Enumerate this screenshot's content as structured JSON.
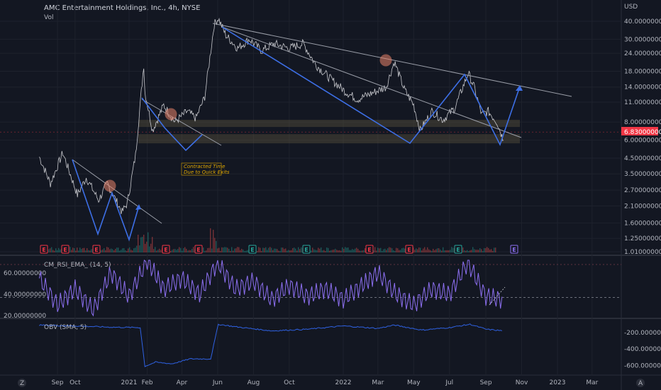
{
  "header": {
    "title": "AMC Entertainment Holdings, Inc., 4h, NYSE",
    "vol_label": "Vol"
  },
  "currency": "USD",
  "current_price": "6.83000000",
  "annotation": {
    "line1": "Contracted Time",
    "line2": "Due to Quick Exits"
  },
  "indicators": {
    "rsi_label": "CM_RSI_EMA_ (14, 5)",
    "obv_label": "OBV (SMA, 5)"
  },
  "bottom_bar": {
    "timezone_icon": "Z",
    "auto_label": "A"
  },
  "event_markers": {
    "earnings": "E",
    "future": "E",
    "dividend": "E"
  },
  "colors": {
    "background": "#131722",
    "price_line": "#d1d4dc",
    "pattern_blue": "#3d6fe6",
    "trendline": "#9a9ea8",
    "circle": "#e8836a",
    "rsi": "#8c6ff0",
    "obv": "#2f62e4",
    "price_badge": "#f23645",
    "zone": "#6b5e42",
    "earnings_marker": "#f23645",
    "dividend_marker": "#26a69a",
    "future_marker": "#8c6ff0"
  },
  "chart_data": [
    {
      "type": "line",
      "name": "price",
      "scale": "log",
      "ylim": [
        1.0,
        48.0
      ],
      "y_ticks": [
        "40.00000000",
        "30.00000000",
        "24.00000000",
        "18.00000000",
        "14.00000000",
        "11.00000000",
        "8.00000000",
        "6.00000000",
        "4.50000000",
        "3.50000000",
        "2.70000000",
        "2.10000000",
        "1.60000000",
        "1.25000000",
        "1.01000000"
      ],
      "x_ticks": [
        "Sep",
        "Oct",
        "2021",
        "Feb",
        "Apr",
        "Jun",
        "Aug",
        "Oct",
        "2022",
        "Mar",
        "May",
        "Jul",
        "Sep",
        "Nov",
        "2023",
        "Mar"
      ],
      "x": [
        "2020-08-01",
        "2020-08-20",
        "2020-09-10",
        "2020-10-05",
        "2020-10-20",
        "2020-11-10",
        "2020-11-25",
        "2020-12-20",
        "2020-12-29",
        "2021-01-12",
        "2021-01-26",
        "2021-01-28",
        "2021-02-10",
        "2021-03-01",
        "2021-03-20",
        "2021-04-10",
        "2021-04-25",
        "2021-05-10",
        "2021-05-26",
        "2021-06-02",
        "2021-06-15",
        "2021-07-05",
        "2021-07-25",
        "2021-08-15",
        "2021-09-05",
        "2021-10-01",
        "2021-10-25",
        "2021-11-15",
        "2021-12-10",
        "2022-01-05",
        "2022-01-25",
        "2022-02-15",
        "2022-03-15",
        "2022-03-29",
        "2022-04-15",
        "2022-05-01",
        "2022-05-12",
        "2022-06-01",
        "2022-06-20",
        "2022-07-10",
        "2022-08-02",
        "2022-08-12",
        "2022-08-25",
        "2022-09-05",
        "2022-09-20",
        "2022-10-01"
      ],
      "values": [
        4.6,
        3.0,
        4.9,
        2.5,
        3.3,
        2.3,
        3.0,
        1.9,
        2.2,
        4.7,
        20.0,
        13.0,
        7.0,
        10.5,
        8.0,
        9.5,
        8.5,
        12.0,
        38.0,
        42.0,
        32.0,
        26.0,
        30.0,
        25.0,
        28.0,
        26.0,
        28.0,
        20.0,
        16.0,
        13.0,
        11.5,
        12.5,
        14.0,
        21.0,
        13.5,
        10.5,
        7.0,
        9.5,
        8.3,
        10.0,
        17.5,
        14.0,
        9.0,
        9.5,
        8.0,
        6.0
      ]
    },
    {
      "type": "bar",
      "name": "volume"
    },
    {
      "type": "line",
      "name": "rsi",
      "ylim": [
        20,
        70
      ],
      "y_ticks": [
        "60.00000000",
        "40.00000000",
        "20.00000000"
      ],
      "x": [
        "2020-08-01",
        "2020-09-01",
        "2020-10-01",
        "2020-11-01",
        "2020-12-01",
        "2021-01-01",
        "2021-02-01",
        "2021-03-01",
        "2021-04-01",
        "2021-05-01",
        "2021-06-01",
        "2021-07-01",
        "2021-08-01",
        "2021-09-01",
        "2021-10-01",
        "2021-11-01",
        "2021-12-01",
        "2022-01-01",
        "2022-02-01",
        "2022-03-01",
        "2022-04-01",
        "2022-05-01",
        "2022-06-01",
        "2022-07-01",
        "2022-08-01",
        "2022-09-01",
        "2022-10-01"
      ],
      "values": [
        55,
        30,
        45,
        25,
        60,
        38,
        72,
        45,
        55,
        40,
        70,
        45,
        52,
        35,
        48,
        38,
        45,
        35,
        48,
        60,
        40,
        30,
        45,
        40,
        70,
        38,
        35
      ]
    },
    {
      "type": "line",
      "name": "obv",
      "ylim": [
        -700,
        -80
      ],
      "y_ticks": [
        "-200.000000",
        "-400.000000",
        "-600.000000"
      ],
      "x": [
        "2020-08-01",
        "2020-10-01",
        "2020-12-01",
        "2021-01-20",
        "2021-01-28",
        "2021-02-15",
        "2021-03-15",
        "2021-04-15",
        "2021-05-20",
        "2021-06-02",
        "2021-07-01",
        "2021-09-01",
        "2021-11-01",
        "2022-01-01",
        "2022-03-01",
        "2022-03-29",
        "2022-05-15",
        "2022-07-01",
        "2022-08-05",
        "2022-09-01",
        "2022-10-01"
      ],
      "values": [
        -110,
        -120,
        -135,
        -140,
        -610,
        -560,
        -580,
        -520,
        -520,
        -100,
        -130,
        -180,
        -160,
        -120,
        -150,
        -110,
        -170,
        -140,
        -100,
        -160,
        -180
      ]
    }
  ]
}
